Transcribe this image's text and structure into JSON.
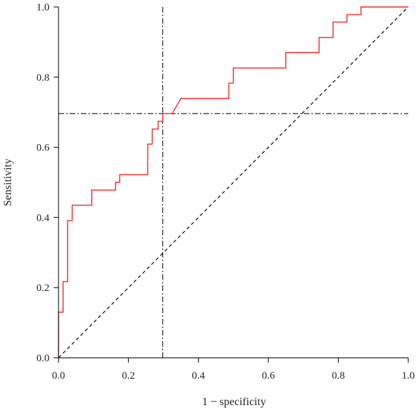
{
  "chart_data": {
    "type": "line",
    "title": "",
    "xlabel": "1 − specificity",
    "ylabel": "Sensitivity",
    "xlim": [
      0,
      1
    ],
    "ylim": [
      0,
      1
    ],
    "x_ticks": [
      "0.0",
      "0.2",
      "0.4",
      "0.6",
      "0.8",
      "1.0"
    ],
    "y_ticks": [
      "0.0",
      "0.2",
      "0.4",
      "0.6",
      "0.8",
      "1.0"
    ],
    "grid": false,
    "legend": "none",
    "series": [
      {
        "kind": "roc-step",
        "color": "#e8262a",
        "x": [
          0.0,
          0.0,
          0.013,
          0.013,
          0.026,
          0.026,
          0.039,
          0.039,
          0.095,
          0.095,
          0.163,
          0.163,
          0.175,
          0.175,
          0.255,
          0.255,
          0.268,
          0.268,
          0.285,
          0.285,
          0.298,
          0.298,
          0.325,
          0.35,
          0.487,
          0.487,
          0.5,
          0.5,
          0.65,
          0.65,
          0.745,
          0.745,
          0.785,
          0.785,
          0.825,
          0.825,
          0.865,
          0.865,
          1.0
        ],
        "y": [
          0.0,
          0.13,
          0.13,
          0.217,
          0.217,
          0.391,
          0.391,
          0.435,
          0.435,
          0.478,
          0.478,
          0.5,
          0.5,
          0.522,
          0.522,
          0.609,
          0.609,
          0.652,
          0.652,
          0.674,
          0.674,
          0.696,
          0.696,
          0.739,
          0.739,
          0.783,
          0.783,
          0.826,
          0.826,
          0.87,
          0.87,
          0.913,
          0.913,
          0.957,
          0.957,
          0.978,
          0.978,
          1.0,
          1.0
        ]
      }
    ],
    "reference_line": {
      "style": "dashed",
      "color": "#111111",
      "from": [
        0,
        0
      ],
      "to": [
        1,
        1
      ]
    },
    "cutoff_lines": {
      "style": "dash-dot",
      "color": "#111111",
      "vertical_x": 0.298,
      "horizontal_y": 0.696
    }
  }
}
